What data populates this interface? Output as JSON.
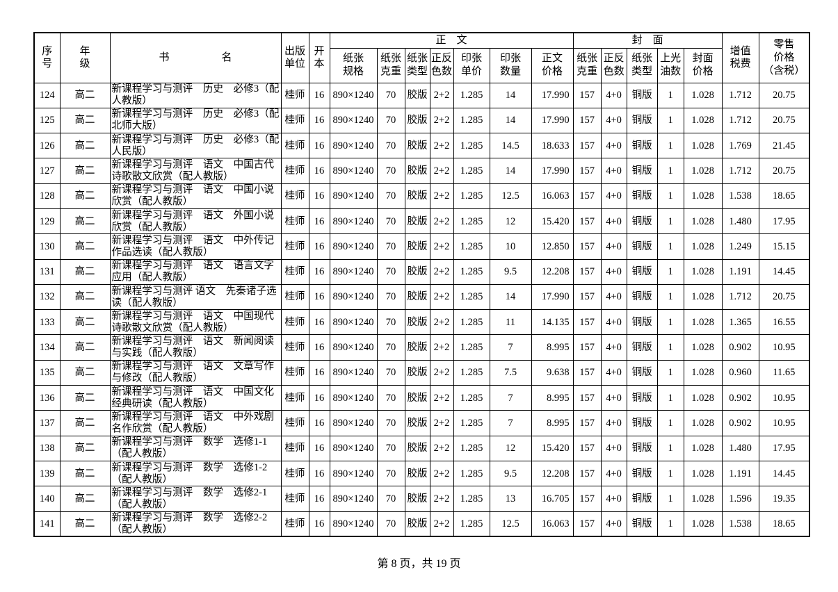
{
  "page": {
    "footer": "第 8 页，共 19 页"
  },
  "table": {
    "group_headers": {
      "body": "正　文",
      "cover": "封　面"
    },
    "headers": {
      "no": "序\n号",
      "grade": "年\n级",
      "title": "书　　　　　名",
      "publisher": "出版\n单位",
      "format": "开\n本",
      "body": [
        "纸张\n规格",
        "纸张\n克重",
        "纸张\n类型",
        "正反\n色数",
        "印张\n单价",
        "印张\n数量",
        "正文\n价格"
      ],
      "cover": [
        "纸张\n克重",
        "正反\n色数",
        "纸张\n类型",
        "上光\n油数",
        "封面\n价格"
      ],
      "vat": "增值\n税费",
      "retail": "零售\n价格\n（含税）"
    },
    "rows": [
      {
        "no": "124",
        "grade": "高二",
        "title": "新课程学习与测评　历史　必修3（配人教版）",
        "publisher": "桂师",
        "format": "16",
        "spec": "890×1240",
        "weight": "70",
        "type": "胶版",
        "colors": "2+2",
        "unit_price": "1.285",
        "sheets": "14",
        "text_price": "17.990",
        "cover_weight": "157",
        "cover_colors": "4+0",
        "cover_type": "铜版",
        "varnish": "1",
        "cover_price": "1.028",
        "vat": "1.712",
        "retail": "20.75"
      },
      {
        "no": "125",
        "grade": "高二",
        "title": "新课程学习与测评　历史　必修3（配北师大版）",
        "publisher": "桂师",
        "format": "16",
        "spec": "890×1240",
        "weight": "70",
        "type": "胶版",
        "colors": "2+2",
        "unit_price": "1.285",
        "sheets": "14",
        "text_price": "17.990",
        "cover_weight": "157",
        "cover_colors": "4+0",
        "cover_type": "铜版",
        "varnish": "1",
        "cover_price": "1.028",
        "vat": "1.712",
        "retail": "20.75"
      },
      {
        "no": "126",
        "grade": "高二",
        "title": "新课程学习与测评　历史　必修3（配人民版）",
        "publisher": "桂师",
        "format": "16",
        "spec": "890×1240",
        "weight": "70",
        "type": "胶版",
        "colors": "2+2",
        "unit_price": "1.285",
        "sheets": "14.5",
        "text_price": "18.633",
        "cover_weight": "157",
        "cover_colors": "4+0",
        "cover_type": "铜版",
        "varnish": "1",
        "cover_price": "1.028",
        "vat": "1.769",
        "retail": "21.45"
      },
      {
        "no": "127",
        "grade": "高二",
        "title": "新课程学习与测评　语文　中国古代诗歌散文欣赏（配人教版）",
        "publisher": "桂师",
        "format": "16",
        "spec": "890×1240",
        "weight": "70",
        "type": "胶版",
        "colors": "2+2",
        "unit_price": "1.285",
        "sheets": "14",
        "text_price": "17.990",
        "cover_weight": "157",
        "cover_colors": "4+0",
        "cover_type": "铜版",
        "varnish": "1",
        "cover_price": "1.028",
        "vat": "1.712",
        "retail": "20.75"
      },
      {
        "no": "128",
        "grade": "高二",
        "title": "新课程学习与测评　语文　中国小说欣赏（配人教版）",
        "publisher": "桂师",
        "format": "16",
        "spec": "890×1240",
        "weight": "70",
        "type": "胶版",
        "colors": "2+2",
        "unit_price": "1.285",
        "sheets": "12.5",
        "text_price": "16.063",
        "cover_weight": "157",
        "cover_colors": "4+0",
        "cover_type": "铜版",
        "varnish": "1",
        "cover_price": "1.028",
        "vat": "1.538",
        "retail": "18.65"
      },
      {
        "no": "129",
        "grade": "高二",
        "title": "新课程学习与测评　语文　外国小说欣赏（配人教版）",
        "publisher": "桂师",
        "format": "16",
        "spec": "890×1240",
        "weight": "70",
        "type": "胶版",
        "colors": "2+2",
        "unit_price": "1.285",
        "sheets": "12",
        "text_price": "15.420",
        "cover_weight": "157",
        "cover_colors": "4+0",
        "cover_type": "铜版",
        "varnish": "1",
        "cover_price": "1.028",
        "vat": "1.480",
        "retail": "17.95"
      },
      {
        "no": "130",
        "grade": "高二",
        "title": "新课程学习与测评　语文　中外传记作品选读（配人教版）",
        "publisher": "桂师",
        "format": "16",
        "spec": "890×1240",
        "weight": "70",
        "type": "胶版",
        "colors": "2+2",
        "unit_price": "1.285",
        "sheets": "10",
        "text_price": "12.850",
        "cover_weight": "157",
        "cover_colors": "4+0",
        "cover_type": "铜版",
        "varnish": "1",
        "cover_price": "1.028",
        "vat": "1.249",
        "retail": "15.15"
      },
      {
        "no": "131",
        "grade": "高二",
        "title": "新课程学习与测评　语文　语言文字应用（配人教版）",
        "publisher": "桂师",
        "format": "16",
        "spec": "890×1240",
        "weight": "70",
        "type": "胶版",
        "colors": "2+2",
        "unit_price": "1.285",
        "sheets": "9.5",
        "text_price": "12.208",
        "cover_weight": "157",
        "cover_colors": "4+0",
        "cover_type": "铜版",
        "varnish": "1",
        "cover_price": "1.028",
        "vat": "1.191",
        "retail": "14.45"
      },
      {
        "no": "132",
        "grade": "高二",
        "title": "新课程学习与测评 语文　先秦诸子选读（配人教版）",
        "publisher": "桂师",
        "format": "16",
        "spec": "890×1240",
        "weight": "70",
        "type": "胶版",
        "colors": "2+2",
        "unit_price": "1.285",
        "sheets": "14",
        "text_price": "17.990",
        "cover_weight": "157",
        "cover_colors": "4+0",
        "cover_type": "铜版",
        "varnish": "1",
        "cover_price": "1.028",
        "vat": "1.712",
        "retail": "20.75"
      },
      {
        "no": "133",
        "grade": "高二",
        "title": "新课程学习与测评　语文　中国现代诗歌散文欣赏（配人教版）",
        "publisher": "桂师",
        "format": "16",
        "spec": "890×1240",
        "weight": "70",
        "type": "胶版",
        "colors": "2+2",
        "unit_price": "1.285",
        "sheets": "11",
        "text_price": "14.135",
        "cover_weight": "157",
        "cover_colors": "4+0",
        "cover_type": "铜版",
        "varnish": "1",
        "cover_price": "1.028",
        "vat": "1.365",
        "retail": "16.55"
      },
      {
        "no": "134",
        "grade": "高二",
        "title": "新课程学习与测评　语文　新闻阅读与实践（配人教版）",
        "publisher": "桂师",
        "format": "16",
        "spec": "890×1240",
        "weight": "70",
        "type": "胶版",
        "colors": "2+2",
        "unit_price": "1.285",
        "sheets": "7",
        "text_price": "8.995",
        "cover_weight": "157",
        "cover_colors": "4+0",
        "cover_type": "铜版",
        "varnish": "1",
        "cover_price": "1.028",
        "vat": "0.902",
        "retail": "10.95"
      },
      {
        "no": "135",
        "grade": "高二",
        "title": "新课程学习与测评　语文　文章写作与修改（配人教版）",
        "publisher": "桂师",
        "format": "16",
        "spec": "890×1240",
        "weight": "70",
        "type": "胶版",
        "colors": "2+2",
        "unit_price": "1.285",
        "sheets": "7.5",
        "text_price": "9.638",
        "cover_weight": "157",
        "cover_colors": "4+0",
        "cover_type": "铜版",
        "varnish": "1",
        "cover_price": "1.028",
        "vat": "0.960",
        "retail": "11.65"
      },
      {
        "no": "136",
        "grade": "高二",
        "title": "新课程学习与测评　语文　中国文化经典研读（配人教版）",
        "publisher": "桂师",
        "format": "16",
        "spec": "890×1240",
        "weight": "70",
        "type": "胶版",
        "colors": "2+2",
        "unit_price": "1.285",
        "sheets": "7",
        "text_price": "8.995",
        "cover_weight": "157",
        "cover_colors": "4+0",
        "cover_type": "铜版",
        "varnish": "1",
        "cover_price": "1.028",
        "vat": "0.902",
        "retail": "10.95"
      },
      {
        "no": "137",
        "grade": "高二",
        "title": "新课程学习与测评　语文　中外戏剧名作欣赏（配人教版）",
        "publisher": "桂师",
        "format": "16",
        "spec": "890×1240",
        "weight": "70",
        "type": "胶版",
        "colors": "2+2",
        "unit_price": "1.285",
        "sheets": "7",
        "text_price": "8.995",
        "cover_weight": "157",
        "cover_colors": "4+0",
        "cover_type": "铜版",
        "varnish": "1",
        "cover_price": "1.028",
        "vat": "0.902",
        "retail": "10.95"
      },
      {
        "no": "138",
        "grade": "高二",
        "title": "新课程学习与测评　数学　选修1-1（配人教版）",
        "publisher": "桂师",
        "format": "16",
        "spec": "890×1240",
        "weight": "70",
        "type": "胶版",
        "colors": "2+2",
        "unit_price": "1.285",
        "sheets": "12",
        "text_price": "15.420",
        "cover_weight": "157",
        "cover_colors": "4+0",
        "cover_type": "铜版",
        "varnish": "1",
        "cover_price": "1.028",
        "vat": "1.480",
        "retail": "17.95"
      },
      {
        "no": "139",
        "grade": "高二",
        "title": "新课程学习与测评　数学　选修1-2（配人教版）",
        "publisher": "桂师",
        "format": "16",
        "spec": "890×1240",
        "weight": "70",
        "type": "胶版",
        "colors": "2+2",
        "unit_price": "1.285",
        "sheets": "9.5",
        "text_price": "12.208",
        "cover_weight": "157",
        "cover_colors": "4+0",
        "cover_type": "铜版",
        "varnish": "1",
        "cover_price": "1.028",
        "vat": "1.191",
        "retail": "14.45"
      },
      {
        "no": "140",
        "grade": "高二",
        "title": "新课程学习与测评　数学　选修2-1（配人教版）",
        "publisher": "桂师",
        "format": "16",
        "spec": "890×1240",
        "weight": "70",
        "type": "胶版",
        "colors": "2+2",
        "unit_price": "1.285",
        "sheets": "13",
        "text_price": "16.705",
        "cover_weight": "157",
        "cover_colors": "4+0",
        "cover_type": "铜版",
        "varnish": "1",
        "cover_price": "1.028",
        "vat": "1.596",
        "retail": "19.35"
      },
      {
        "no": "141",
        "grade": "高二",
        "title": "新课程学习与测评　数学　选修2-2（配人教版）",
        "publisher": "桂师",
        "format": "16",
        "spec": "890×1240",
        "weight": "70",
        "type": "胶版",
        "colors": "2+2",
        "unit_price": "1.285",
        "sheets": "12.5",
        "text_price": "16.063",
        "cover_weight": "157",
        "cover_colors": "4+0",
        "cover_type": "铜版",
        "varnish": "1",
        "cover_price": "1.028",
        "vat": "1.538",
        "retail": "18.65"
      }
    ]
  }
}
